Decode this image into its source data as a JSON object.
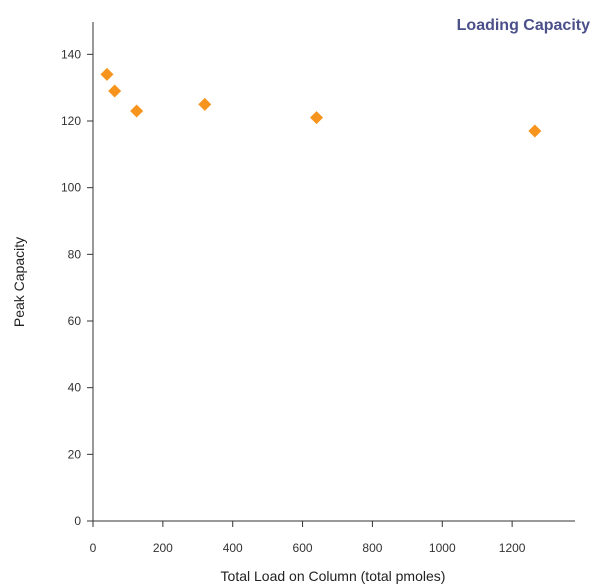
{
  "chart_data": {
    "type": "scatter",
    "title": "Loading Capacity",
    "xlabel": "Total Load on Column (total pmoles)",
    "ylabel": "Peak Capacity",
    "xlim": [
      0,
      1380
    ],
    "ylim": [
      0,
      150
    ],
    "xticks": [
      0,
      200,
      400,
      600,
      800,
      1000,
      1200
    ],
    "yticks": [
      0,
      20,
      40,
      60,
      80,
      100,
      120,
      140
    ],
    "grid": false,
    "series": [
      {
        "points": [
          {
            "x": 40,
            "y": 134
          },
          {
            "x": 62,
            "y": 129
          },
          {
            "x": 125,
            "y": 123
          },
          {
            "x": 320,
            "y": 125
          },
          {
            "x": 640,
            "y": 121
          },
          {
            "x": 1265,
            "y": 117
          }
        ]
      }
    ],
    "colors": {
      "marker": "#f7941d",
      "title": "#4b4f8a"
    }
  }
}
